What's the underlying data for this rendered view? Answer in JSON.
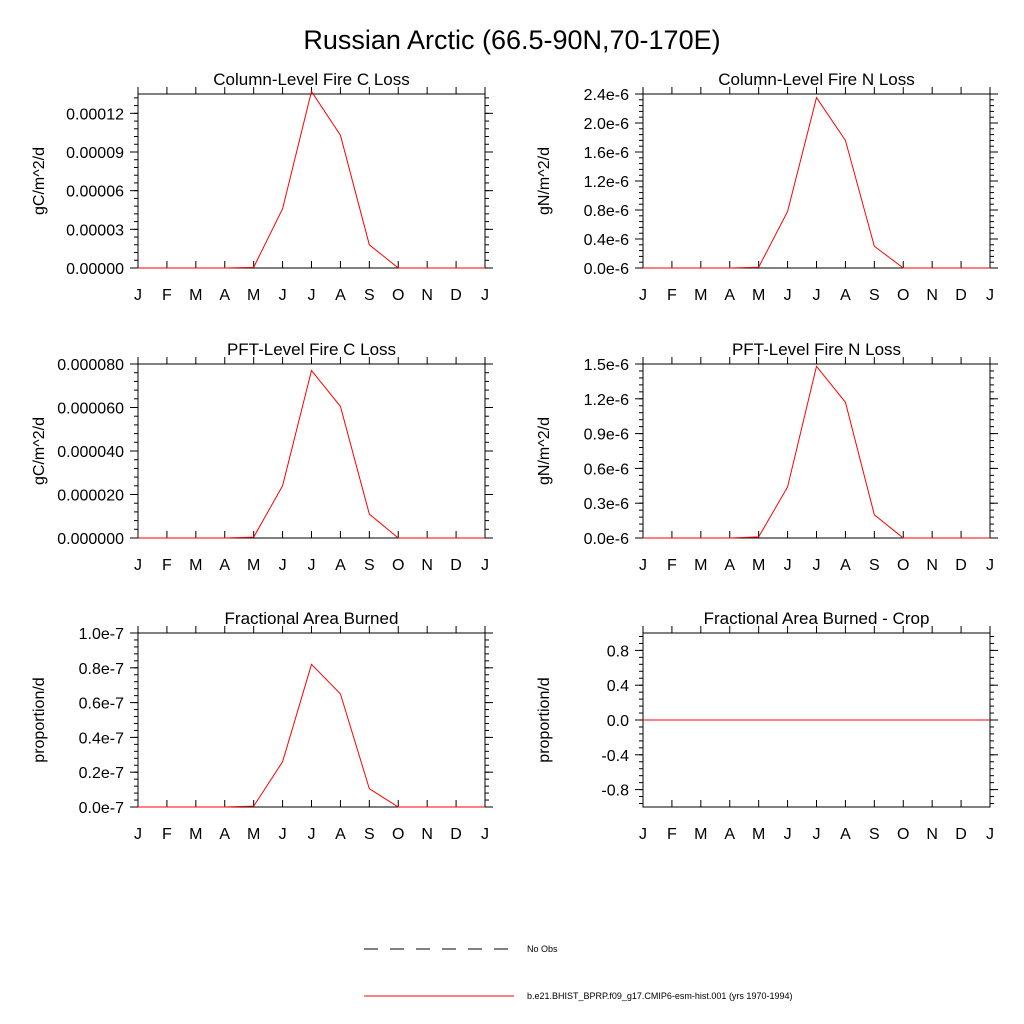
{
  "title": "Russian Arctic (66.5-90N,70-170E)",
  "colors": {
    "series": "#ff0000",
    "axes": "#000000",
    "obs_line": "#000000"
  },
  "legend": {
    "obs_label": "No Obs",
    "model_label": "b.e21.BHIST_BPRP.f09_g17.CMIP6-esm-hist.001 (yrs 1970-1994)"
  },
  "chart_data": [
    {
      "type": "line",
      "title": "Column-Level Fire C Loss",
      "ylabel": "gC/m^2/d",
      "categories": [
        "J",
        "F",
        "M",
        "A",
        "M",
        "J",
        "J",
        "A",
        "S",
        "O",
        "N",
        "D",
        "J"
      ],
      "ylim": [
        0,
        0.000135
      ],
      "yticks": [
        0,
        3e-05,
        6e-05,
        9e-05,
        0.00012
      ],
      "ytick_labels": [
        "0.00000",
        "0.00003",
        "0.00006",
        "0.00009",
        "0.00012"
      ],
      "values": [
        0,
        0,
        0,
        0,
        5e-07,
        4.6e-05,
        0.000137,
        0.000103,
        1.8e-05,
        0,
        0,
        0,
        0
      ]
    },
    {
      "type": "line",
      "title": "Column-Level Fire N Loss",
      "ylabel": "gN/m^2/d",
      "categories": [
        "J",
        "F",
        "M",
        "A",
        "M",
        "J",
        "J",
        "A",
        "S",
        "O",
        "N",
        "D",
        "J"
      ],
      "ylim": [
        0,
        2.4e-06
      ],
      "yticks": [
        0,
        4e-07,
        8e-07,
        1.2e-06,
        1.6e-06,
        2e-06,
        2.4e-06
      ],
      "ytick_labels": [
        "0.0e-6",
        "0.4e-6",
        "0.8e-6",
        "1.2e-6",
        "1.6e-6",
        "2.0e-6",
        "2.4e-6"
      ],
      "values": [
        0,
        0,
        0,
        0,
        1e-08,
        7.8e-07,
        2.35e-06,
        1.76e-06,
        3e-07,
        0,
        0,
        0,
        0
      ]
    },
    {
      "type": "line",
      "title": "PFT-Level Fire C Loss",
      "ylabel": "gC/m^2/d",
      "categories": [
        "J",
        "F",
        "M",
        "A",
        "M",
        "J",
        "J",
        "A",
        "S",
        "O",
        "N",
        "D",
        "J"
      ],
      "ylim": [
        0,
        8e-05
      ],
      "yticks": [
        0,
        2e-05,
        4e-05,
        6e-05,
        8e-05
      ],
      "ytick_labels": [
        "0.000000",
        "0.000020",
        "0.000040",
        "0.000060",
        "0.000080"
      ],
      "values": [
        0,
        0,
        0,
        0,
        4e-07,
        2.4e-05,
        7.7e-05,
        6.05e-05,
        1.1e-05,
        0,
        0,
        0,
        0
      ]
    },
    {
      "type": "line",
      "title": "PFT-Level Fire N Loss",
      "ylabel": "gN/m^2/d",
      "categories": [
        "J",
        "F",
        "M",
        "A",
        "M",
        "J",
        "J",
        "A",
        "S",
        "O",
        "N",
        "D",
        "J"
      ],
      "ylim": [
        0,
        1.5e-06
      ],
      "yticks": [
        0,
        3e-07,
        6e-07,
        9e-07,
        1.2e-06,
        1.5e-06
      ],
      "ytick_labels": [
        "0.0e-6",
        "0.3e-6",
        "0.6e-6",
        "0.9e-6",
        "1.2e-6",
        "1.5e-6"
      ],
      "values": [
        0,
        0,
        0,
        0,
        1e-08,
        4.4e-07,
        1.48e-06,
        1.17e-06,
        2e-07,
        0,
        0,
        0,
        0
      ]
    },
    {
      "type": "line",
      "title": "Fractional Area Burned",
      "ylabel": "proportion/d",
      "categories": [
        "J",
        "F",
        "M",
        "A",
        "M",
        "J",
        "J",
        "A",
        "S",
        "O",
        "N",
        "D",
        "J"
      ],
      "ylim": [
        0,
        1e-07
      ],
      "yticks": [
        0,
        2e-08,
        4e-08,
        6e-08,
        8e-08,
        1e-07
      ],
      "ytick_labels": [
        "0.0e-7",
        "0.2e-7",
        "0.4e-7",
        "0.6e-7",
        "0.8e-7",
        "1.0e-7"
      ],
      "values": [
        0,
        0,
        0,
        0,
        5e-10,
        2.6e-08,
        8.2e-08,
        6.5e-08,
        1.05e-08,
        0,
        0,
        0,
        0
      ]
    },
    {
      "type": "line",
      "title": "Fractional Area Burned - Crop",
      "ylabel": "proportion/d",
      "categories": [
        "J",
        "F",
        "M",
        "A",
        "M",
        "J",
        "J",
        "A",
        "S",
        "O",
        "N",
        "D",
        "J"
      ],
      "ylim": [
        -1,
        1
      ],
      "yticks": [
        -0.8,
        -0.4,
        0,
        0.4,
        0.8
      ],
      "ytick_labels": [
        "-0.8",
        "-0.4",
        "0.0",
        "0.4",
        "0.8"
      ],
      "values": [
        0,
        0,
        0,
        0,
        0,
        0,
        0,
        0,
        0,
        0,
        0,
        0,
        0
      ]
    }
  ]
}
